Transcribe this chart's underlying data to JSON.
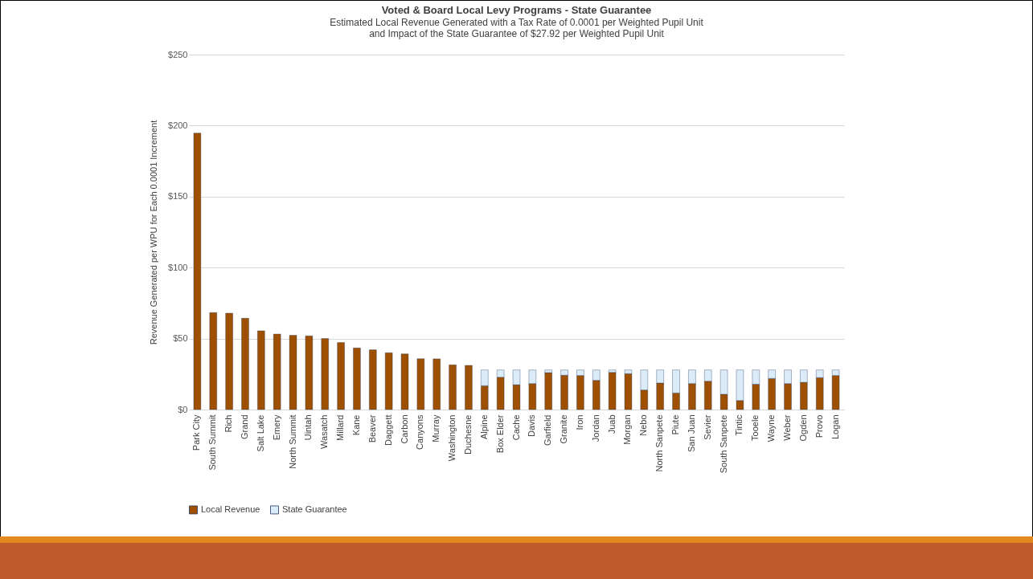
{
  "chart_data": {
    "type": "bar",
    "title": "Voted & Board Local Levy Programs - State Guarantee",
    "subtitle": "Estimated Local Revenue Generated with a Tax Rate of 0.0001 per Weighted Pupil Unit\nand Impact of the State Guarantee of $27.92 per Weighted Pupil Unit",
    "ylabel": "Revenue Generated per WPU for Each 0.0001 Increment",
    "categories": [
      "Park City",
      "South Summit",
      "Rich",
      "Grand",
      "Salt Lake",
      "Emery",
      "North Summit",
      "Uintah",
      "Wasatch",
      "Millard",
      "Kane",
      "Beaver",
      "Daggett",
      "Carbon",
      "Canyons",
      "Murray",
      "Washington",
      "Duchesne",
      "Alpine",
      "Box Elder",
      "Cache",
      "Davis",
      "Garfield",
      "Granite",
      "Iron",
      "Jordan",
      "Juab",
      "Morgan",
      "Nebo",
      "North Sanpete",
      "Piute",
      "San Juan",
      "Sevier",
      "South Sanpete",
      "Tintic",
      "Tooele",
      "Wayne",
      "Weber",
      "Ogden",
      "Provo",
      "Logan"
    ],
    "stacked": true,
    "series": [
      {
        "name": "Local Revenue",
        "color": "#9e5000",
        "values": [
          194.7,
          68.3,
          67.9,
          64.3,
          55.5,
          53.2,
          52.3,
          51.9,
          50,
          47.2,
          43.4,
          42.1,
          40,
          39.2,
          35.8,
          35.7,
          31.5,
          31.1,
          16.8,
          22.8,
          17.5,
          18.3,
          26,
          24.2,
          24,
          20.6,
          26.2,
          25.3,
          13.8,
          18.7,
          11.7,
          18.3,
          20,
          10.8,
          6.4,
          17.9,
          21.9,
          18.3,
          19.2,
          22.5,
          24
        ]
      },
      {
        "name": "State Guarantee",
        "color": "#dcebf8",
        "values": [
          null,
          null,
          null,
          null,
          null,
          null,
          null,
          null,
          null,
          null,
          null,
          null,
          null,
          null,
          null,
          null,
          null,
          null,
          11.1,
          5.1,
          10.4,
          9.6,
          1.9,
          3.7,
          3.9,
          7.3,
          1.7,
          2.6,
          14.1,
          9.2,
          16.2,
          9.6,
          7.9,
          17.1,
          21.5,
          10,
          6,
          9.6,
          8.7,
          5.4,
          3.9
        ]
      }
    ],
    "ylim": [
      0,
      250
    ],
    "yticks": [
      {
        "value": 0,
        "label": "$0"
      },
      {
        "value": 50,
        "label": "$50"
      },
      {
        "value": 100,
        "label": "$100"
      },
      {
        "value": 150,
        "label": "$150"
      },
      {
        "value": 200,
        "label": "$200"
      },
      {
        "value": 250,
        "label": "$250"
      }
    ],
    "grid": "y",
    "legend": "bottom"
  }
}
